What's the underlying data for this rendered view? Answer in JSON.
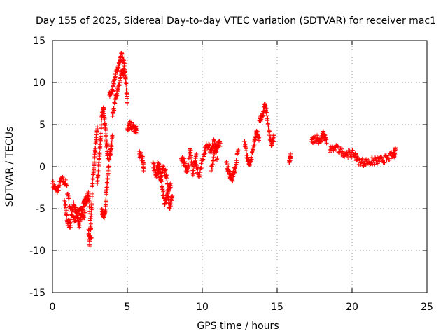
{
  "chart_data": {
    "type": "scatter",
    "title": "Day 155 of 2025, Sidereal Day-to-day VTEC variation (SDTVAR) for receiver mac1",
    "xlabel": "GPS time / hours",
    "ylabel": "SDTVAR / TECUs",
    "xlim": [
      0,
      25
    ],
    "ylim": [
      -15,
      15
    ],
    "xticks": [
      0,
      5,
      10,
      15,
      20,
      25
    ],
    "yticks": [
      -15,
      -10,
      -5,
      0,
      5,
      10,
      15
    ],
    "grid": true,
    "marker": "+",
    "color": "#ff0000",
    "series": [
      {
        "name": "SDTVAR",
        "segments": [
          {
            "x": [
              0.0,
              0.3,
              0.6,
              0.9,
              1.2,
              1.5,
              1.8,
              2.1,
              2.4,
              2.6
            ],
            "y": [
              -2.0,
              -3.0,
              -1.5,
              -2.0,
              -5.0,
              -6.5,
              -5.0,
              -6.0,
              -3.0,
              -8.5
            ]
          },
          {
            "x": [
              0.8,
              1.0,
              1.2,
              1.4,
              1.6,
              1.8,
              2.0,
              2.2,
              2.4
            ],
            "y": [
              -4.0,
              -6.5,
              -7.0,
              -4.5,
              -5.5,
              -7.0,
              -5.0,
              -4.0,
              -3.5
            ]
          },
          {
            "x": [
              2.4,
              2.5,
              2.6,
              2.7,
              2.8,
              2.9,
              3.0
            ],
            "y": [
              -7.5,
              -9.5,
              -5.0,
              -1.5,
              0.5,
              3.0,
              4.5
            ]
          },
          {
            "x": [
              3.0,
              3.1,
              3.2,
              3.3,
              3.4,
              3.5,
              3.6,
              3.7
            ],
            "y": [
              -2.0,
              0.5,
              3.0,
              6.0,
              7.0,
              5.0,
              3.0,
              1.0
            ]
          },
          {
            "x": [
              3.3,
              3.4,
              3.5,
              3.6,
              3.7,
              3.8,
              3.9,
              4.0
            ],
            "y": [
              -5.0,
              -6.0,
              -5.5,
              -3.0,
              -1.0,
              1.0,
              2.0,
              3.5
            ]
          },
          {
            "x": [
              3.8,
              4.0,
              4.2,
              4.4,
              4.6,
              4.8,
              4.9,
              5.0
            ],
            "y": [
              8.5,
              9.0,
              11.0,
              12.0,
              13.5,
              12.0,
              10.0,
              7.5
            ]
          },
          {
            "x": [
              4.0,
              4.2,
              4.4,
              4.6,
              4.8
            ],
            "y": [
              6.0,
              8.0,
              9.5,
              11.0,
              11.5
            ]
          },
          {
            "x": [
              5.0,
              5.2,
              5.5,
              5.6
            ],
            "y": [
              4.5,
              5.0,
              4.5,
              4.3
            ]
          },
          {
            "x": [
              5.8,
              6.0,
              6.1
            ],
            "y": [
              1.5,
              1.0,
              -0.2
            ]
          },
          {
            "x": [
              6.7,
              6.9,
              7.1,
              7.3,
              7.5,
              7.7,
              7.9
            ],
            "y": [
              0.5,
              -1.0,
              0.3,
              -2.5,
              -4.5,
              -3.0,
              -2.0
            ]
          },
          {
            "x": [
              7.0,
              7.2,
              7.4,
              7.6,
              7.8,
              8.0
            ],
            "y": [
              0.5,
              -1.5,
              0.0,
              -1.0,
              -5.0,
              -3.5
            ]
          },
          {
            "x": [
              8.6,
              8.8,
              9.0,
              9.2,
              9.4,
              9.6
            ],
            "y": [
              1.0,
              0.5,
              -0.5,
              2.0,
              -0.8,
              1.5
            ]
          },
          {
            "x": [
              9.5,
              9.8,
              10.1,
              10.3,
              10.6,
              10.8,
              11.0
            ],
            "y": [
              0.5,
              -1.0,
              1.5,
              2.5,
              2.0,
              3.0,
              1.0
            ]
          },
          {
            "x": [
              10.6,
              10.8,
              11.0,
              11.2
            ],
            "y": [
              -0.5,
              1.5,
              2.5,
              2.8
            ]
          },
          {
            "x": [
              11.6,
              11.8,
              12.0,
              12.2,
              12.4
            ],
            "y": [
              0.5,
              -0.8,
              -1.5,
              -0.2,
              2.0
            ]
          },
          {
            "x": [
              12.8,
              13.0,
              13.2,
              13.4,
              13.6,
              13.8
            ],
            "y": [
              3.0,
              1.0,
              0.5,
              2.0,
              4.0,
              3.5
            ]
          },
          {
            "x": [
              13.8,
              14.0,
              14.2,
              14.4,
              14.6,
              14.8
            ],
            "y": [
              5.5,
              6.0,
              7.5,
              5.0,
              2.5,
              3.5
            ]
          },
          {
            "x": [
              15.8,
              15.9
            ],
            "y": [
              0.5,
              1.2
            ]
          },
          {
            "x": [
              17.3,
              17.6,
              17.9,
              18.1,
              18.3
            ],
            "y": [
              3.0,
              3.5,
              3.0,
              4.0,
              2.8
            ]
          },
          {
            "x": [
              18.5,
              18.9,
              19.3,
              19.7,
              20.1,
              20.4
            ],
            "y": [
              2.0,
              2.2,
              1.8,
              1.5,
              1.5,
              0.9
            ]
          },
          {
            "x": [
              20.4,
              20.8,
              21.2,
              21.6,
              22.0,
              22.4,
              22.8,
              22.9
            ],
            "y": [
              0.7,
              0.5,
              0.6,
              0.7,
              0.8,
              1.0,
              1.5,
              2.0
            ]
          }
        ]
      }
    ]
  }
}
